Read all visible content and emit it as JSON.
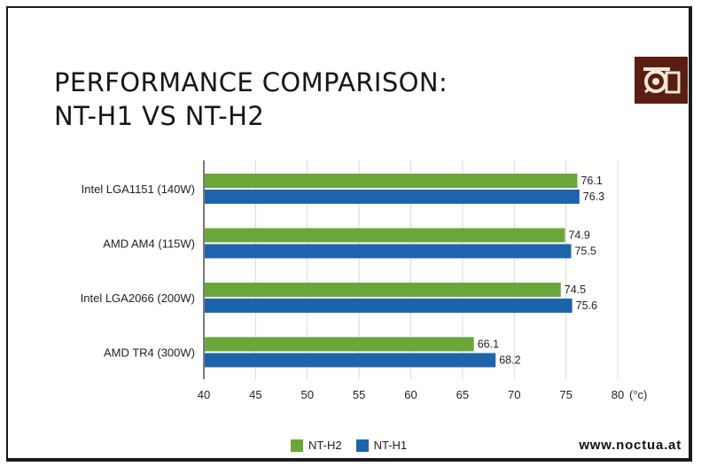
{
  "title_lines": [
    "PERFORMANCE COMPARISON:",
    "NT-H1 VS NT-H2"
  ],
  "website": "www.noctua.at",
  "logo_icon": "noctua-owl-logo-icon",
  "colors": {
    "nt_h2": "#6aa63a",
    "nt_h1": "#1d64ad",
    "logo_bg": "#5a1d12",
    "grid": "#d9d9d9"
  },
  "chart_data": {
    "type": "bar",
    "orientation": "horizontal",
    "categories": [
      "Intel LGA1151 (140W)",
      "AMD AM4 (115W)",
      "Intel LGA2066 (200W)",
      "AMD TR4 (300W)"
    ],
    "series": [
      {
        "name": "NT-H2",
        "color": "#6aa63a",
        "values": [
          76.1,
          74.9,
          74.5,
          66.1
        ]
      },
      {
        "name": "NT-H1",
        "color": "#1d64ad",
        "values": [
          76.3,
          75.5,
          75.6,
          68.2
        ]
      }
    ],
    "xlim": [
      40,
      80
    ],
    "xticks": [
      "40",
      "45",
      "50",
      "55",
      "60",
      "65",
      "70",
      "75",
      "80"
    ],
    "x_unit": "(°c)",
    "grid": true,
    "legend_position": "bottom"
  }
}
